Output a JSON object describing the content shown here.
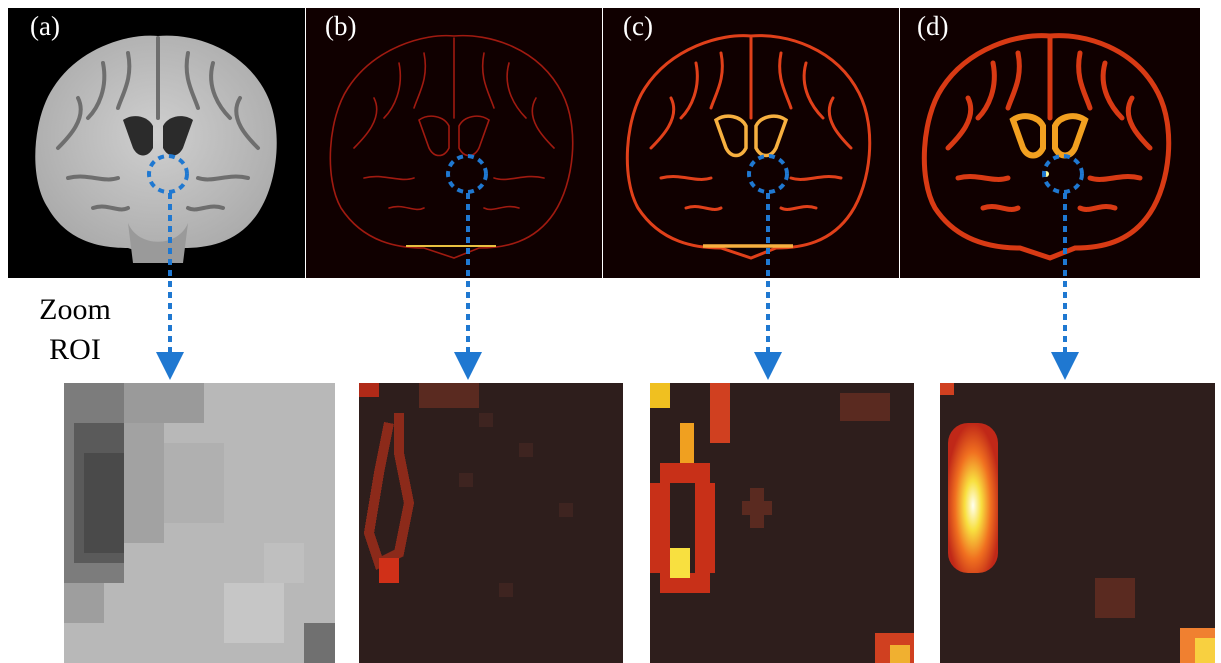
{
  "panels": [
    {
      "label": "(a)",
      "name": "t1-mri"
    },
    {
      "label": "(b)",
      "name": "map-b"
    },
    {
      "label": "(c)",
      "name": "map-c"
    },
    {
      "label": "(d)",
      "name": "map-d"
    }
  ],
  "zoom_label_line1": "Zoom",
  "zoom_label_line2": "ROI",
  "colors": {
    "roi_marker": "#1f78d1",
    "map_background": "#100000",
    "zoom_background": "#2e1e1c",
    "gray_light": "#b9b9b9",
    "gray_dark": "#4a4a4a"
  }
}
